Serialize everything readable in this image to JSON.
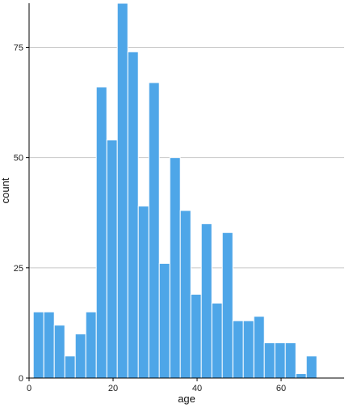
{
  "chart_data": {
    "type": "bar",
    "subtype": "histogram",
    "xlabel": "age",
    "ylabel": "count",
    "xlim": [
      0,
      75
    ],
    "ylim": [
      0,
      85
    ],
    "x_ticks": [
      0,
      20,
      40,
      60
    ],
    "y_ticks": [
      0,
      25,
      50,
      75
    ],
    "grid": "horizontal",
    "legend": "none",
    "bins": [
      {
        "x0": 1,
        "x1": 3.5,
        "count": 15
      },
      {
        "x0": 3.5,
        "x1": 6,
        "count": 15
      },
      {
        "x0": 6,
        "x1": 8.5,
        "count": 12
      },
      {
        "x0": 8.5,
        "x1": 11,
        "count": 5
      },
      {
        "x0": 11,
        "x1": 13.5,
        "count": 10
      },
      {
        "x0": 13.5,
        "x1": 16,
        "count": 15
      },
      {
        "x0": 16,
        "x1": 18.5,
        "count": 66
      },
      {
        "x0": 18.5,
        "x1": 21,
        "count": 54
      },
      {
        "x0": 21,
        "x1": 23.5,
        "count": 85
      },
      {
        "x0": 23.5,
        "x1": 26,
        "count": 74
      },
      {
        "x0": 26,
        "x1": 28.5,
        "count": 39
      },
      {
        "x0": 28.5,
        "x1": 31,
        "count": 67
      },
      {
        "x0": 31,
        "x1": 33.5,
        "count": 26
      },
      {
        "x0": 33.5,
        "x1": 36,
        "count": 50
      },
      {
        "x0": 36,
        "x1": 38.5,
        "count": 38
      },
      {
        "x0": 38.5,
        "x1": 41,
        "count": 19
      },
      {
        "x0": 41,
        "x1": 43.5,
        "count": 35
      },
      {
        "x0": 43.5,
        "x1": 46,
        "count": 17
      },
      {
        "x0": 46,
        "x1": 48.5,
        "count": 33
      },
      {
        "x0": 48.5,
        "x1": 51,
        "count": 13
      },
      {
        "x0": 51,
        "x1": 53.5,
        "count": 13
      },
      {
        "x0": 53.5,
        "x1": 56,
        "count": 14
      },
      {
        "x0": 56,
        "x1": 58.5,
        "count": 8
      },
      {
        "x0": 58.5,
        "x1": 61,
        "count": 8
      },
      {
        "x0": 61,
        "x1": 63.5,
        "count": 8
      },
      {
        "x0": 63.5,
        "x1": 66,
        "count": 1
      },
      {
        "x0": 66,
        "x1": 68.5,
        "count": 5
      }
    ],
    "colors": {
      "bar_fill": "#4ea6e8",
      "bar_stroke": "#ffffff",
      "grid": "#c8c8c8",
      "axis": "#000000"
    }
  }
}
